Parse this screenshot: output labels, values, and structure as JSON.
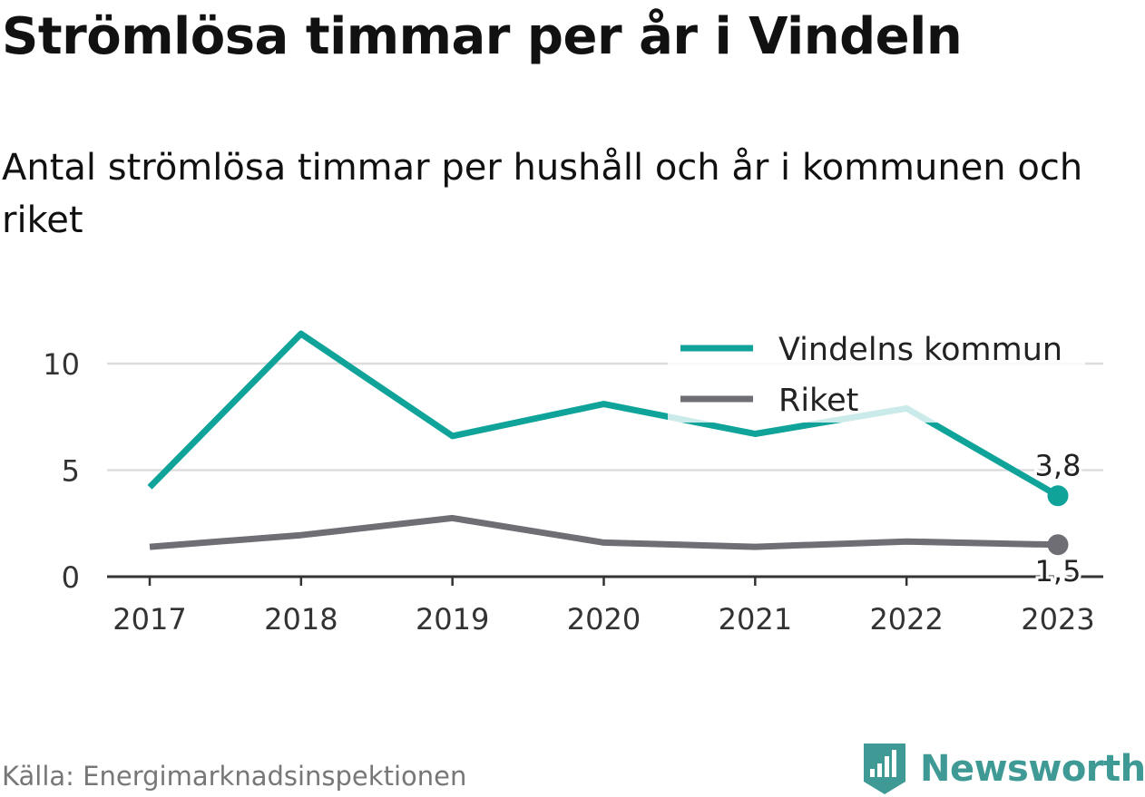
{
  "title": "Strömlösa timmar per år i Vindeln",
  "subtitle": "Antal strömlösa timmar per hushåll och år i kommunen och riket",
  "source": "Källa: Energimarknadsinspektionen",
  "brand": {
    "name": "Newsworthy",
    "icon": "newsworthy-logo-icon",
    "color": "#3f9a96"
  },
  "chart_data": {
    "type": "line",
    "x": [
      "2017",
      "2018",
      "2019",
      "2020",
      "2021",
      "2022",
      "2023"
    ],
    "series": [
      {
        "name": "Vindelns kommun",
        "color": "#0fa39a",
        "values": [
          4.2,
          11.4,
          6.6,
          8.1,
          6.7,
          7.9,
          3.8
        ]
      },
      {
        "name": "Riket",
        "color": "#6f6e74",
        "values": [
          1.4,
          1.95,
          2.75,
          1.6,
          1.4,
          1.65,
          1.5
        ]
      }
    ],
    "end_labels": [
      "3,8",
      "1,5"
    ],
    "yticks": [
      "0",
      "5",
      "10"
    ],
    "ytick_values": [
      0,
      5,
      10
    ],
    "ylim": [
      0,
      12
    ],
    "grid": true,
    "legend_position": "top-right"
  }
}
